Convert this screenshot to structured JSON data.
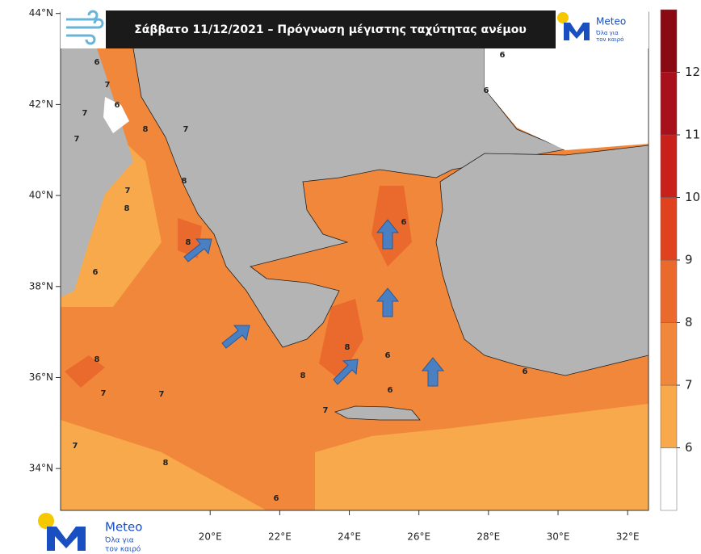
{
  "header": {
    "title": "Σάββατο 11/12/2021 – Πρόγνωση μέγιστης ταχύτητας ανέμου"
  },
  "logo": {
    "name": "Meteo",
    "tagline": [
      "Όλα για",
      "τον καιρό"
    ]
  },
  "map": {
    "xlim": [
      15.7,
      32.6
    ],
    "ylim": [
      33.08,
      44.03
    ],
    "lat_ticks": [
      {
        "value": 44,
        "label": "44°N"
      },
      {
        "value": 42,
        "label": "42°N"
      },
      {
        "value": 40,
        "label": "40°N"
      },
      {
        "value": 38,
        "label": "38°N"
      },
      {
        "value": 36,
        "label": "36°N"
      },
      {
        "value": 34,
        "label": "34°N"
      }
    ],
    "lon_ticks": [
      {
        "value": 20,
        "label": "20°E"
      },
      {
        "value": 22,
        "label": "22°E"
      },
      {
        "value": 24,
        "label": "24°E"
      },
      {
        "value": 26,
        "label": "26°E"
      },
      {
        "value": 28,
        "label": "28°E"
      },
      {
        "value": 30,
        "label": "30°E"
      },
      {
        "value": 32,
        "label": "32°E"
      }
    ],
    "contour_labels": [
      "6",
      "7",
      "6",
      "7",
      "7",
      "8",
      "7",
      "8",
      "8",
      "6",
      "7",
      "8",
      "7",
      "7",
      "7",
      "8",
      "8",
      "8",
      "8",
      "6",
      "6",
      "6",
      "6",
      "6",
      "6",
      "7",
      "6"
    ]
  },
  "colorbar": {
    "range": [
      5,
      13
    ],
    "levels": [
      6,
      7,
      8,
      9,
      10,
      11,
      12
    ],
    "colors": [
      "#ffffff",
      "#f7a94c",
      "#f0873a",
      "#ea6a2e",
      "#e0421f",
      "#c8201a",
      "#a8101c",
      "#8a0a14"
    ]
  }
}
